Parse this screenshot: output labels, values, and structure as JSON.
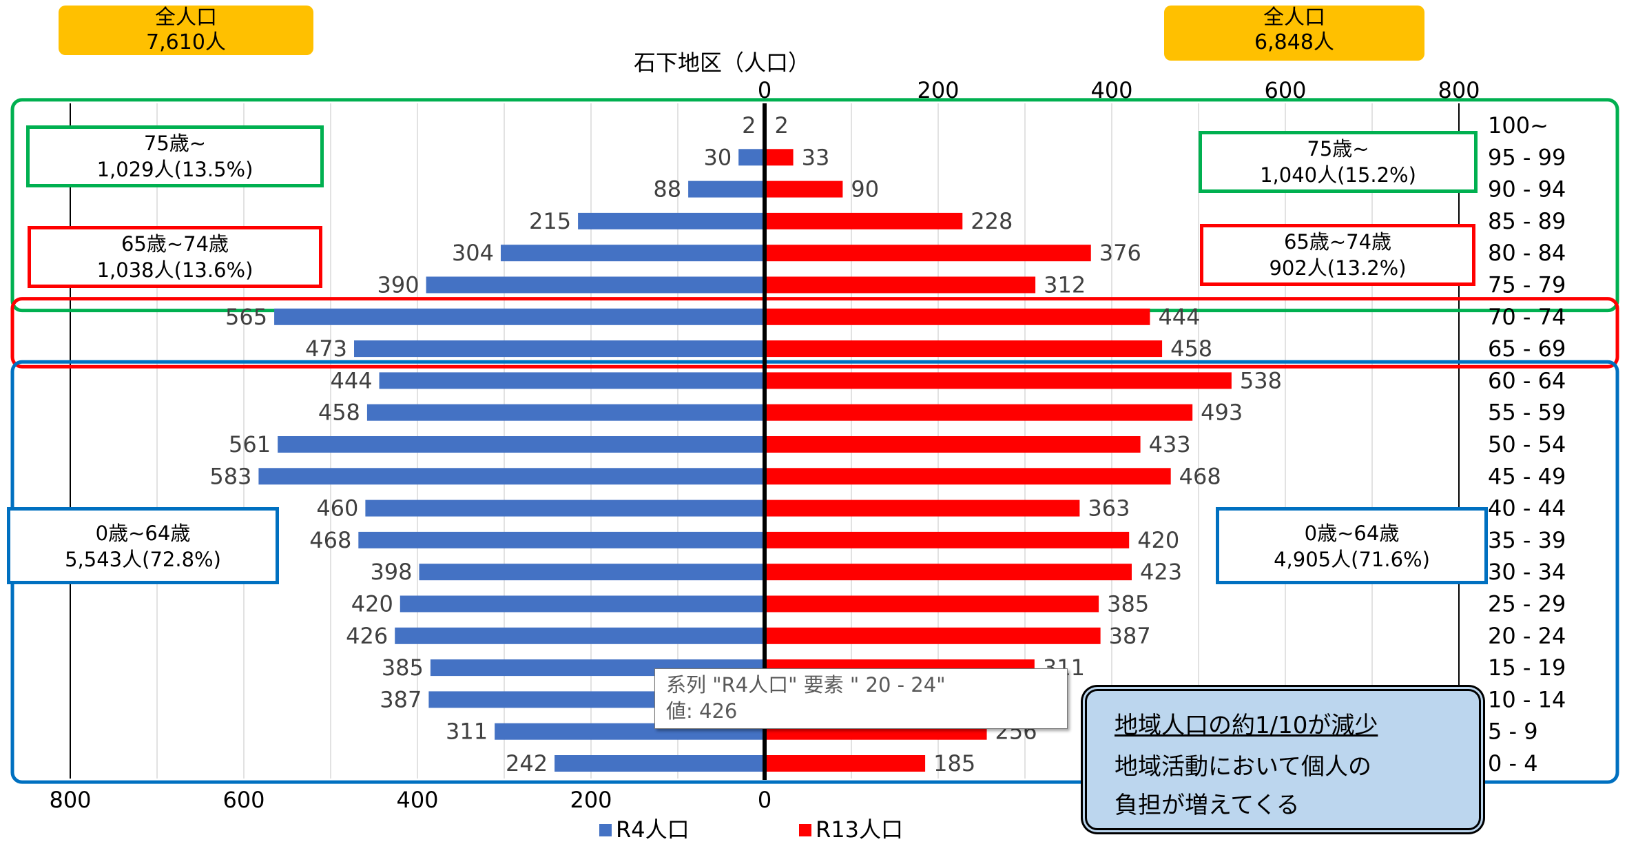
{
  "header": {
    "left_total_label": "全人口",
    "left_total_value": "7,610人",
    "right_total_label": "全人口",
    "right_total_value": "6,848人"
  },
  "chart_data": {
    "type": "bar",
    "orientation": "horizontal-population-pyramid",
    "title": "石下地区（人口）",
    "categories": [
      "100~",
      "95 - 99",
      "90 - 94",
      "85 - 89",
      "80 - 84",
      "75 - 79",
      "70 - 74",
      "65 - 69",
      "60 - 64",
      "55 - 59",
      "50 - 54",
      "45 - 49",
      "40 - 44",
      "35 - 39",
      "30 - 34",
      "25 - 29",
      "20 - 24",
      "15 - 19",
      "10 - 14",
      "5 - 9",
      "0 - 4"
    ],
    "series": [
      {
        "name": "R4人口",
        "color": "#4472c4",
        "side": "left",
        "values": [
          2,
          30,
          88,
          215,
          304,
          390,
          565,
          473,
          444,
          458,
          561,
          583,
          460,
          468,
          398,
          420,
          426,
          385,
          387,
          311,
          242
        ]
      },
      {
        "name": "R13人口",
        "color": "#ff0000",
        "side": "right",
        "values": [
          2,
          33,
          90,
          228,
          376,
          312,
          444,
          458,
          538,
          493,
          433,
          468,
          363,
          420,
          423,
          385,
          387,
          311,
          null,
          256,
          185
        ]
      }
    ],
    "left_axis_ticks": [
      "800",
      "600",
      "400",
      "200",
      "0"
    ],
    "right_axis_ticks": [
      "0",
      "200",
      "400",
      "600",
      "800"
    ],
    "xlim": [
      0,
      800
    ],
    "grid": true,
    "legend_position": "bottom"
  },
  "boxes": {
    "left_75": [
      "75歳~",
      "1,029人(13.5%)"
    ],
    "right_75": [
      "75歳~",
      "1,040人(15.2%)"
    ],
    "left_65": [
      "65歳~74歳",
      "1,038人(13.6%)"
    ],
    "right_65": [
      "65歳~74歳",
      "902人(13.2%)"
    ],
    "left_0": [
      "0歳~64歳",
      "5,543人(72.8%)"
    ],
    "right_0": [
      "0歳~64歳",
      "4,905人(71.6%)"
    ]
  },
  "tooltip": {
    "line1": "系列 \"R4人口\" 要素 \" 20 -  24\"",
    "line2": "値: 426"
  },
  "callout": {
    "line1": "地域人口の約1/10が減少",
    "line2": "地域活動において個人の",
    "line3": "負担が増えてくる"
  },
  "colors": {
    "r4": "#4472c4",
    "r13": "#ff0000",
    "group_75": "#00b050",
    "group_65": "#ff0000",
    "group_0": "#0070c0",
    "total_tag": "#ffc000"
  }
}
